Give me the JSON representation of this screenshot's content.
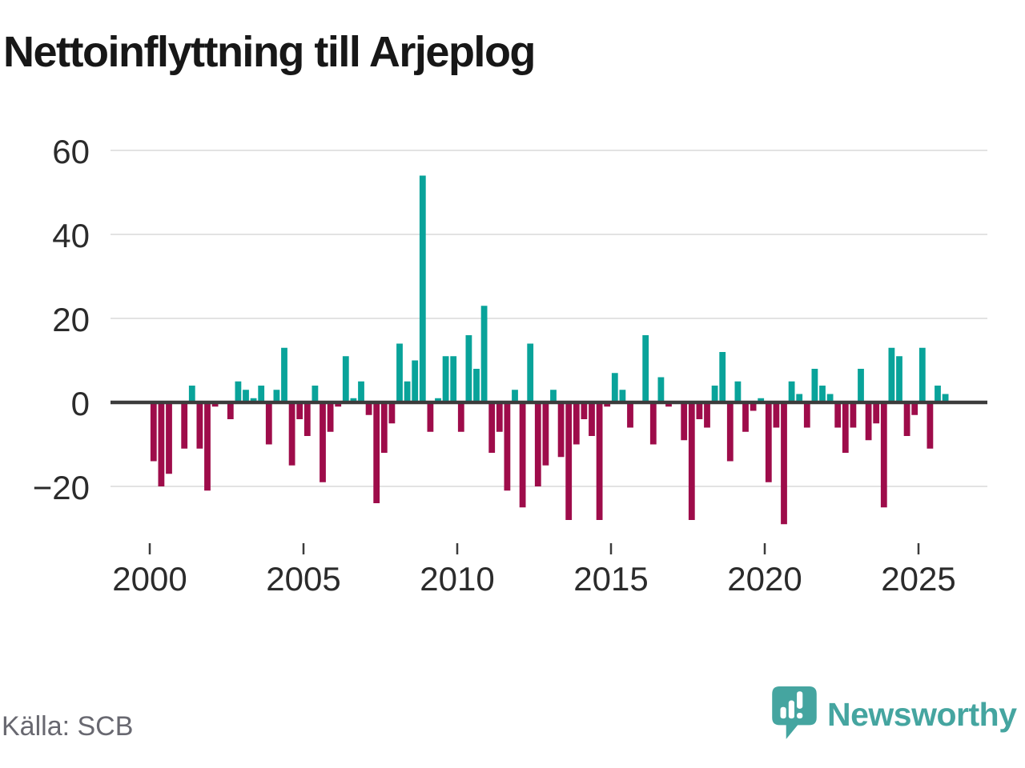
{
  "title": "Nettoinflyttning till Arjeplog",
  "source": "Källa: SCB",
  "brand": {
    "name": "Newsworthy",
    "color": "#45a5a0",
    "icon": "newsworthy-speech-bubble-chart-icon"
  },
  "chart_data": {
    "type": "bar",
    "title": "Nettoinflyttning till Arjeplog",
    "frequency": "quarterly",
    "x_start_year": 2000,
    "x_ticks": [
      2000,
      2005,
      2010,
      2015,
      2020,
      2025
    ],
    "x_tick_labels": [
      "2000",
      "2005",
      "2010",
      "2015",
      "2020",
      "2025"
    ],
    "y_ticks": [
      60,
      40,
      20,
      0,
      -20
    ],
    "y_tick_labels": [
      "60",
      "40",
      "20",
      "0",
      "−20"
    ],
    "ylim": [
      -30,
      62
    ],
    "grid": "horizontal",
    "legend": "none",
    "positive_color": "#09a39a",
    "negative_color": "#9e0c4a",
    "series_by_year": [
      {
        "year": 2000,
        "q": [
          -14,
          -20,
          -17,
          0
        ]
      },
      {
        "year": 2001,
        "q": [
          -11,
          4,
          -11,
          -21
        ]
      },
      {
        "year": 2002,
        "q": [
          -1,
          0,
          -4,
          5
        ]
      },
      {
        "year": 2003,
        "q": [
          3,
          1,
          4,
          -10
        ]
      },
      {
        "year": 2004,
        "q": [
          3,
          13,
          -15,
          -4
        ]
      },
      {
        "year": 2005,
        "q": [
          -8,
          4,
          -19,
          -7
        ]
      },
      {
        "year": 2006,
        "q": [
          -1,
          11,
          1,
          5
        ]
      },
      {
        "year": 2007,
        "q": [
          -3,
          -24,
          -12,
          -5
        ]
      },
      {
        "year": 2008,
        "q": [
          14,
          5,
          10,
          54
        ]
      },
      {
        "year": 2009,
        "q": [
          -7,
          1,
          11,
          11
        ]
      },
      {
        "year": 2010,
        "q": [
          -7,
          16,
          8,
          23
        ]
      },
      {
        "year": 2011,
        "q": [
          -12,
          -7,
          -21,
          3
        ]
      },
      {
        "year": 2012,
        "q": [
          -25,
          14,
          -20,
          -15
        ]
      },
      {
        "year": 2013,
        "q": [
          3,
          -13,
          -28,
          -10
        ]
      },
      {
        "year": 2014,
        "q": [
          -4,
          -8,
          -28,
          -1
        ]
      },
      {
        "year": 2015,
        "q": [
          7,
          3,
          -6,
          0
        ]
      },
      {
        "year": 2016,
        "q": [
          16,
          -10,
          6,
          -1
        ]
      },
      {
        "year": 2017,
        "q": [
          0,
          -9,
          -28,
          -4
        ]
      },
      {
        "year": 2018,
        "q": [
          -6,
          4,
          12,
          -14
        ]
      },
      {
        "year": 2019,
        "q": [
          5,
          -7,
          -2,
          1
        ]
      },
      {
        "year": 2020,
        "q": [
          -19,
          -6,
          -29,
          5
        ]
      },
      {
        "year": 2021,
        "q": [
          2,
          -6,
          8,
          4
        ]
      },
      {
        "year": 2022,
        "q": [
          2,
          -6,
          -12,
          -6
        ]
      },
      {
        "year": 2023,
        "q": [
          8,
          -9,
          -5,
          -25
        ]
      },
      {
        "year": 2024,
        "q": [
          13,
          11,
          -8,
          -3
        ]
      },
      {
        "year": 2025,
        "q": [
          13,
          -11,
          4,
          2
        ]
      }
    ]
  }
}
